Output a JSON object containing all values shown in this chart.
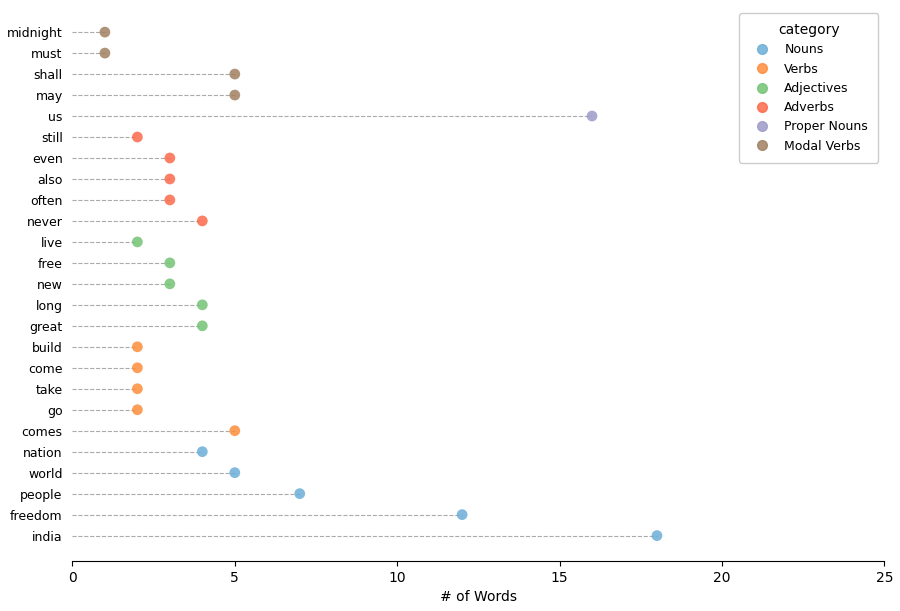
{
  "words": [
    "midnight",
    "must",
    "shall",
    "may",
    "us",
    "still",
    "even",
    "also",
    "often",
    "never",
    "live",
    "free",
    "new",
    "long",
    "great",
    "build",
    "come",
    "take",
    "go",
    "comes",
    "nation",
    "world",
    "people",
    "freedom",
    "india"
  ],
  "values": [
    1,
    1,
    5,
    5,
    16,
    2,
    3,
    3,
    3,
    4,
    2,
    3,
    3,
    4,
    4,
    2,
    2,
    2,
    2,
    5,
    4,
    5,
    7,
    12,
    18
  ],
  "categories": [
    "Modal Verbs",
    "Modal Verbs",
    "Modal Verbs",
    "Modal Verbs",
    "Proper Nouns",
    "Adverbs",
    "Adverbs",
    "Adverbs",
    "Adverbs",
    "Adverbs",
    "Adjectives",
    "Adjectives",
    "Adjectives",
    "Adjectives",
    "Adjectives",
    "Verbs",
    "Verbs",
    "Verbs",
    "Verbs",
    "Verbs",
    "Nouns",
    "Nouns",
    "Nouns",
    "Nouns",
    "Nouns"
  ],
  "category_colors": {
    "Nouns": "#6BAED6",
    "Verbs": "#FD8D3C",
    "Adjectives": "#74C476",
    "Adverbs": "#FB6A4A",
    "Proper Nouns": "#9E9AC8",
    "Modal Verbs": "#A08060"
  },
  "xlabel": "# of Words",
  "xlim": [
    0,
    25
  ],
  "legend_title": "category",
  "dot_size": 60,
  "line_color": "#aaaaaa",
  "line_style": "--",
  "line_width": 0.8
}
